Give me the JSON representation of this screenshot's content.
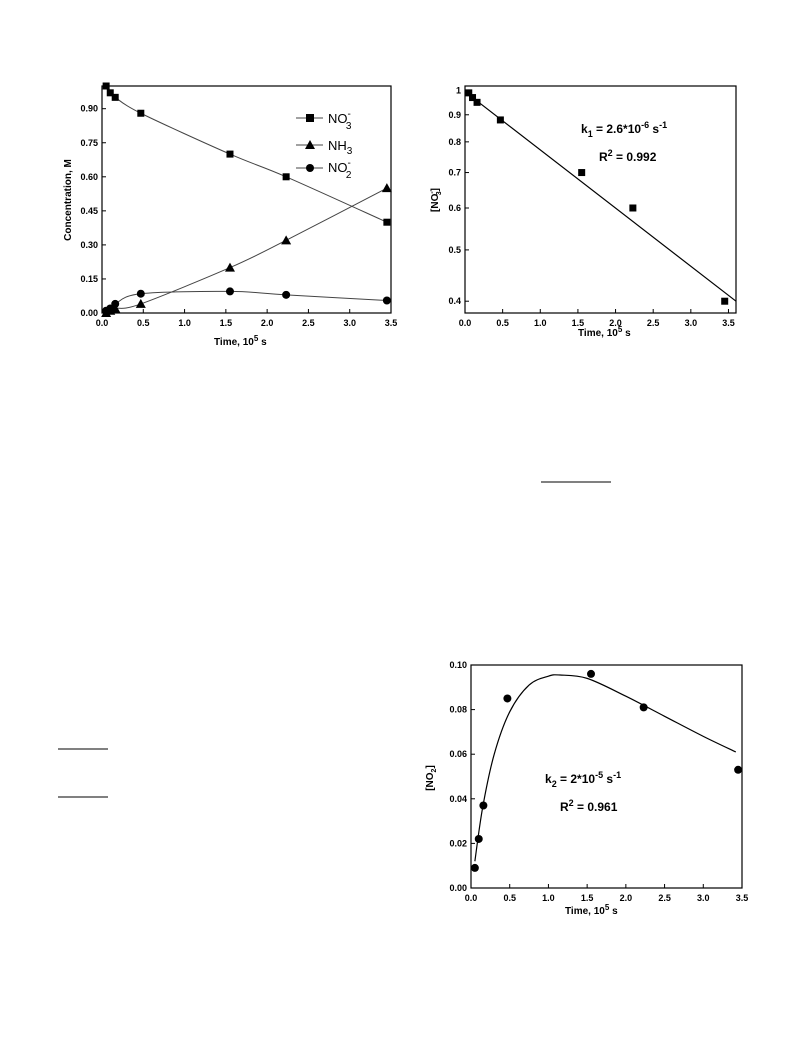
{
  "chart_data": [
    {
      "type": "line",
      "xlabel": "Time, 10^5 s",
      "ylabel": "Concentration, M",
      "xlim": [
        0.0,
        3.5
      ],
      "ylim": [
        0.0,
        1.0
      ],
      "xticks": [
        "0.0",
        "0.5",
        "1.0",
        "1.5",
        "2.0",
        "2.5",
        "3.0",
        "3.5"
      ],
      "yticks": [
        "0.00",
        "0.15",
        "0.30",
        "0.45",
        "0.60",
        "0.75",
        "0.90"
      ],
      "legend_position": "top-right",
      "series": [
        {
          "name": "NO3-",
          "marker": "square",
          "x": [
            0.05,
            0.1,
            0.16,
            0.47,
            1.55,
            2.23,
            3.45
          ],
          "y": [
            1.0,
            0.97,
            0.95,
            0.88,
            0.7,
            0.6,
            0.4
          ]
        },
        {
          "name": "NH3",
          "marker": "triangle",
          "x": [
            0.05,
            0.1,
            0.16,
            0.47,
            1.55,
            2.23,
            3.45
          ],
          "y": [
            0.0,
            0.01,
            0.02,
            0.04,
            0.2,
            0.32,
            0.55
          ]
        },
        {
          "name": "NO2-",
          "marker": "circle",
          "x": [
            0.05,
            0.1,
            0.16,
            0.47,
            1.55,
            2.23,
            3.45
          ],
          "y": [
            0.01,
            0.02,
            0.04,
            0.085,
            0.095,
            0.08,
            0.055
          ]
        }
      ]
    },
    {
      "type": "scatter",
      "xlabel": "Time, 10^5 s",
      "ylabel": "[NO3-]",
      "yscale": "log",
      "xlim": [
        0.0,
        3.6
      ],
      "ylim": [
        0.38,
        1.02
      ],
      "xticks": [
        "0.0",
        "0.5",
        "1.0",
        "1.5",
        "2.0",
        "2.5",
        "3.0",
        "3.5"
      ],
      "yticks": [
        "1",
        "0.9",
        "0.8",
        "0.7",
        "0.6",
        "0.5",
        "0.4"
      ],
      "annotations": [
        "k1 = 2.6*10-6 s-1",
        "R2 = 0.992"
      ],
      "series": [
        {
          "marker": "square",
          "x": [
            0.05,
            0.1,
            0.16,
            0.47,
            1.55,
            2.23,
            3.45
          ],
          "y": [
            0.99,
            0.97,
            0.95,
            0.88,
            0.7,
            0.6,
            0.4
          ]
        }
      ],
      "fit_line": {
        "x": [
          0.0,
          3.6
        ],
        "y": [
          0.995,
          0.4
        ]
      }
    },
    {
      "type": "scatter",
      "xlabel": "Time, 10^5 s",
      "ylabel": "[NO2]",
      "xlim": [
        0.0,
        3.5
      ],
      "ylim": [
        0.0,
        0.1
      ],
      "xticks": [
        "0.0",
        "0.5",
        "1.0",
        "1.5",
        "2.0",
        "2.5",
        "3.0",
        "3.5"
      ],
      "yticks": [
        "0.00",
        "0.02",
        "0.04",
        "0.06",
        "0.08",
        "0.10"
      ],
      "annotations": [
        "k2 = 2*10-5 s-1",
        "R2 = 0.961"
      ],
      "series": [
        {
          "marker": "circle",
          "x": [
            0.05,
            0.1,
            0.16,
            0.47,
            1.55,
            2.23,
            3.45
          ],
          "y": [
            0.009,
            0.022,
            0.037,
            0.085,
            0.096,
            0.081,
            0.053
          ]
        }
      ],
      "fit_curve": {
        "x": [
          0.05,
          0.15,
          0.3,
          0.5,
          0.75,
          1.0,
          1.15,
          1.5,
          2.0,
          2.5,
          3.0,
          3.42
        ],
        "y": [
          0.012,
          0.036,
          0.06,
          0.079,
          0.091,
          0.095,
          0.0955,
          0.094,
          0.086,
          0.077,
          0.068,
          0.061
        ]
      }
    }
  ]
}
